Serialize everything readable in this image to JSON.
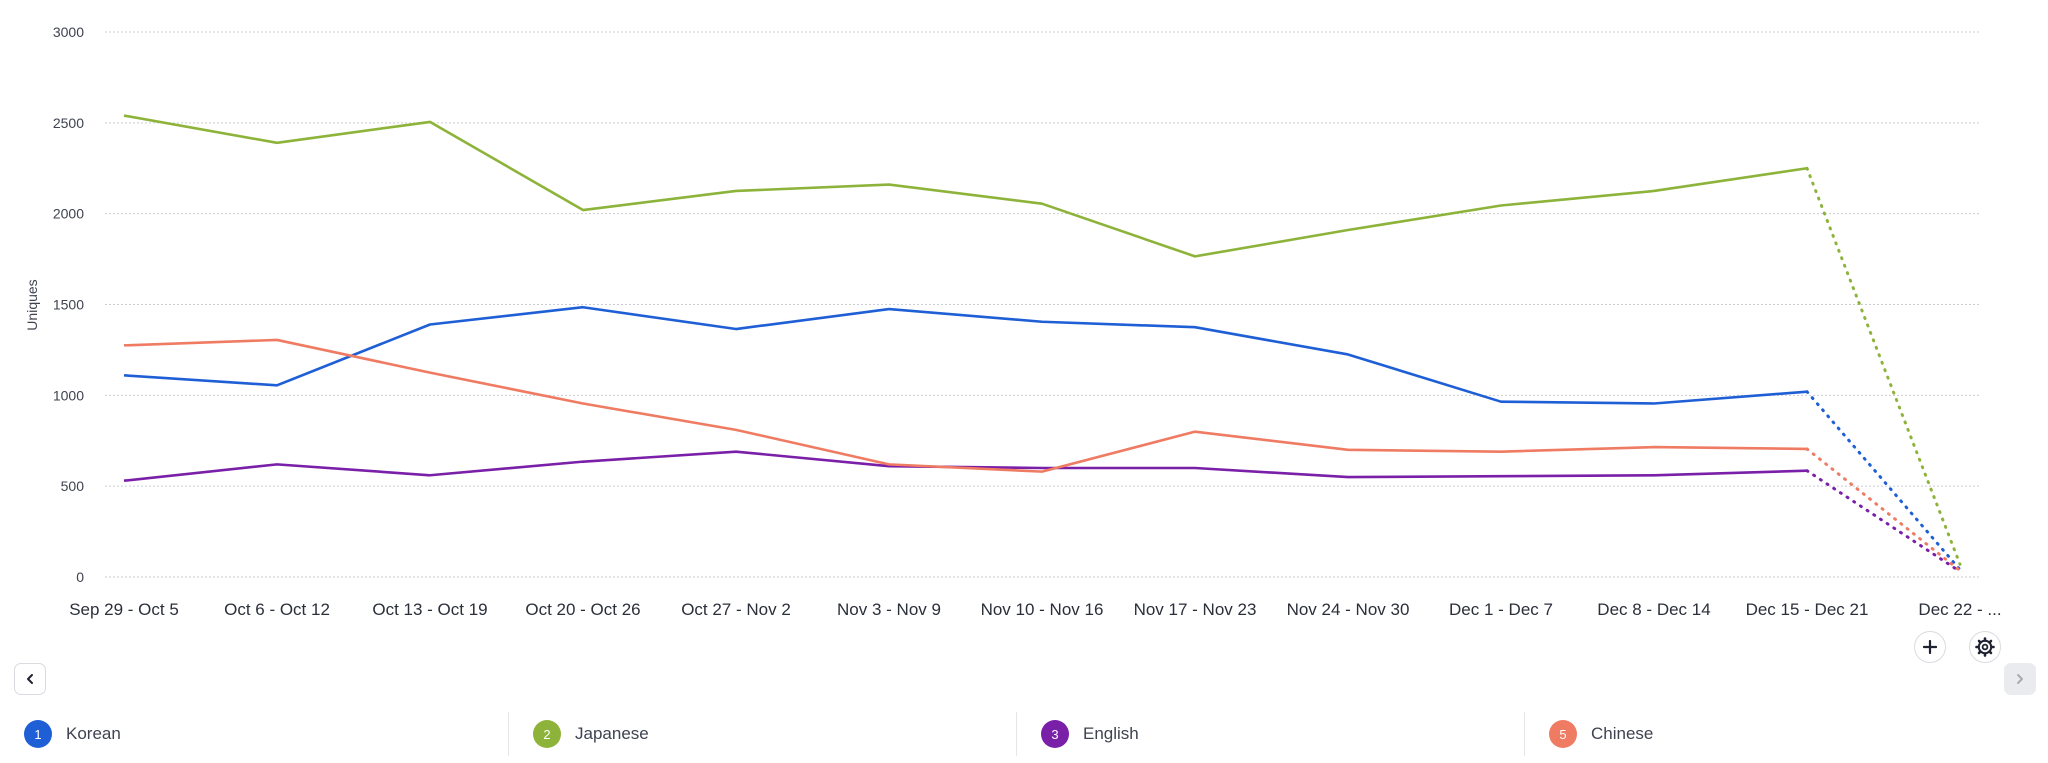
{
  "chart_data": {
    "type": "line",
    "ylabel": "Uniques",
    "ylim": [
      0,
      3000
    ],
    "yticks": [
      0,
      500,
      1000,
      1500,
      2000,
      2500,
      3000
    ],
    "grid": true,
    "categories": [
      "Sep 29 - Oct 5",
      "Oct 6 - Oct 12",
      "Oct 13 - Oct 19",
      "Oct 20 - Oct 26",
      "Oct 27 - Nov 2",
      "Nov 3 - Nov 9",
      "Nov 10 - Nov 16",
      "Nov 17 - Nov 23",
      "Nov 24 - Nov 30",
      "Dec 1 - Dec 7",
      "Dec 8 - Dec 14",
      "Dec 15 - Dec 21",
      "Dec 22 - ..."
    ],
    "last_point_partial": true,
    "series": [
      {
        "name": "Korean",
        "color": "#1f5fd6",
        "values": [
          1110,
          1055,
          1390,
          1485,
          1365,
          1475,
          1405,
          1375,
          1225,
          965,
          955,
          1020,
          40
        ]
      },
      {
        "name": "Japanese",
        "color": "#8db33a",
        "values": [
          2540,
          2390,
          2505,
          2020,
          2125,
          2160,
          2055,
          1765,
          1910,
          2045,
          2125,
          2250,
          70
        ]
      },
      {
        "name": "English",
        "color": "#7a1fa8",
        "values": [
          530,
          620,
          560,
          635,
          690,
          610,
          600,
          600,
          550,
          555,
          560,
          585,
          30
        ]
      },
      {
        "name": "Chinese",
        "color": "#ef7b63",
        "values": [
          1275,
          1305,
          1125,
          955,
          810,
          620,
          580,
          800,
          700,
          690,
          715,
          705,
          35
        ]
      }
    ]
  },
  "legend": [
    {
      "badge": "1",
      "label": "Korean",
      "color": "#1f5fd6"
    },
    {
      "badge": "2",
      "label": "Japanese",
      "color": "#8db33a"
    },
    {
      "badge": "3",
      "label": "English",
      "color": "#7a1fa8"
    },
    {
      "badge": "5",
      "label": "Chinese",
      "color": "#ef7b63"
    }
  ],
  "controls": {
    "add_icon": "plus-icon",
    "settings_icon": "gear-icon",
    "prev_icon": "chevron-left-icon",
    "next_icon": "chevron-right-icon"
  }
}
